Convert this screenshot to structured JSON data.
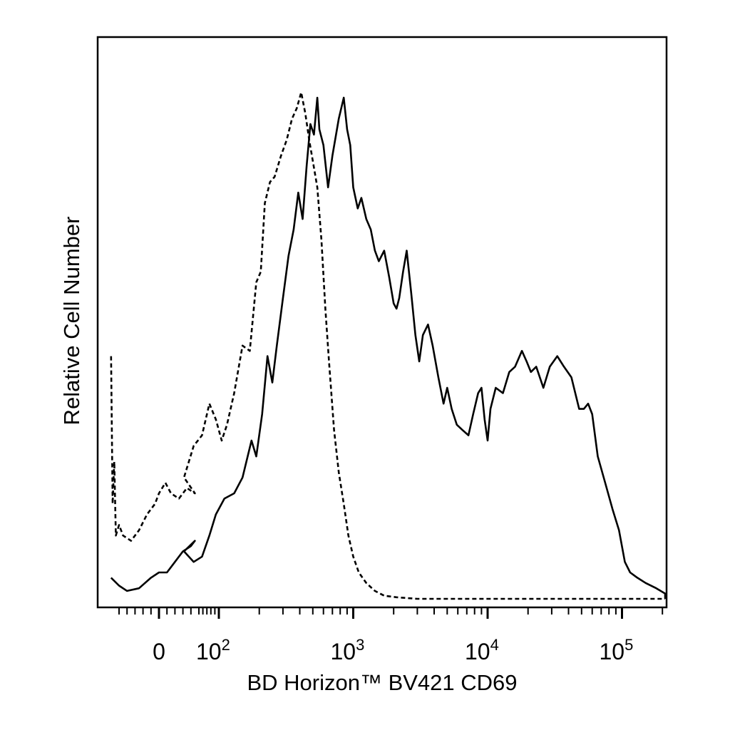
{
  "chart_data": {
    "type": "line",
    "title": "",
    "xlabel": "BD Horizon™ BV421 CD69",
    "ylabel": "Relative Cell Number",
    "x_scale": "biexponential",
    "xlim": [
      -60,
      250000
    ],
    "ylim": [
      0,
      100
    ],
    "grid": false,
    "legend": "none",
    "x_ticks": [
      {
        "label": "0",
        "base": "0",
        "exp": ""
      },
      {
        "label": "10^2",
        "base": "10",
        "exp": "2"
      },
      {
        "label": "10^3",
        "base": "10",
        "exp": "3"
      },
      {
        "label": "10^4",
        "base": "10",
        "exp": "4"
      },
      {
        "label": "10^5",
        "base": "10",
        "exp": "5"
      }
    ],
    "series": [
      {
        "style": "solid",
        "color": "#000000",
        "points": [
          [
            -60,
            4
          ],
          [
            -50,
            2.5
          ],
          [
            -40,
            1.5
          ],
          [
            -25,
            2
          ],
          [
            -10,
            4
          ],
          [
            0,
            5
          ],
          [
            10,
            5
          ],
          [
            20,
            7
          ],
          [
            30,
            9
          ],
          [
            40,
            10
          ],
          [
            45,
            11
          ],
          [
            55,
            9
          ],
          [
            65,
            7
          ],
          [
            75,
            8
          ],
          [
            85,
            12
          ],
          [
            95,
            16
          ],
          [
            110,
            19
          ],
          [
            130,
            20
          ],
          [
            150,
            23
          ],
          [
            175,
            30
          ],
          [
            190,
            27
          ],
          [
            210,
            35
          ],
          [
            230,
            46
          ],
          [
            250,
            41
          ],
          [
            270,
            48
          ],
          [
            300,
            57
          ],
          [
            330,
            65
          ],
          [
            360,
            70
          ],
          [
            390,
            77
          ],
          [
            420,
            72
          ],
          [
            450,
            82
          ],
          [
            480,
            90
          ],
          [
            510,
            88
          ],
          [
            540,
            95
          ],
          [
            560,
            89
          ],
          [
            600,
            86
          ],
          [
            650,
            78
          ],
          [
            700,
            84
          ],
          [
            780,
            91
          ],
          [
            850,
            95
          ],
          [
            900,
            89
          ],
          [
            950,
            86
          ],
          [
            1000,
            78
          ],
          [
            1080,
            74
          ],
          [
            1150,
            76
          ],
          [
            1250,
            72
          ],
          [
            1350,
            70
          ],
          [
            1450,
            66
          ],
          [
            1550,
            64
          ],
          [
            1700,
            66
          ],
          [
            1850,
            61
          ],
          [
            2000,
            56
          ],
          [
            2100,
            55
          ],
          [
            2200,
            57
          ],
          [
            2350,
            62
          ],
          [
            2500,
            66
          ],
          [
            2700,
            58
          ],
          [
            2900,
            50
          ],
          [
            3100,
            45
          ],
          [
            3300,
            50
          ],
          [
            3600,
            52
          ],
          [
            3900,
            48
          ],
          [
            4300,
            42
          ],
          [
            4700,
            37
          ],
          [
            5000,
            40
          ],
          [
            5400,
            36
          ],
          [
            5900,
            33
          ],
          [
            6500,
            32
          ],
          [
            7200,
            31
          ],
          [
            7800,
            35
          ],
          [
            8500,
            39
          ],
          [
            9000,
            40
          ],
          [
            9500,
            34
          ],
          [
            10000,
            30
          ],
          [
            10500,
            36
          ],
          [
            11500,
            40
          ],
          [
            13000,
            39
          ],
          [
            14500,
            43
          ],
          [
            16000,
            44
          ],
          [
            18000,
            47
          ],
          [
            19500,
            45
          ],
          [
            21000,
            43
          ],
          [
            23000,
            44
          ],
          [
            26000,
            40
          ],
          [
            29000,
            44
          ],
          [
            33000,
            46
          ],
          [
            37000,
            44
          ],
          [
            42000,
            42
          ],
          [
            48000,
            36
          ],
          [
            52000,
            36
          ],
          [
            56000,
            37
          ],
          [
            60000,
            35
          ],
          [
            66000,
            27
          ],
          [
            75000,
            22
          ],
          [
            85000,
            17
          ],
          [
            95000,
            13
          ],
          [
            105000,
            7
          ],
          [
            115000,
            5
          ],
          [
            130000,
            4
          ],
          [
            150000,
            3
          ],
          [
            180000,
            2
          ],
          [
            210000,
            1
          ],
          [
            240000,
            0
          ]
        ]
      },
      {
        "style": "dashed",
        "color": "#000000",
        "points": [
          [
            -60,
            46
          ],
          [
            -58,
            18
          ],
          [
            -56,
            26
          ],
          [
            -54,
            12
          ],
          [
            -50,
            14
          ],
          [
            -45,
            12
          ],
          [
            -35,
            11
          ],
          [
            -25,
            13
          ],
          [
            -15,
            16
          ],
          [
            -5,
            18
          ],
          [
            0,
            20
          ],
          [
            8,
            22
          ],
          [
            15,
            20
          ],
          [
            25,
            19
          ],
          [
            35,
            21
          ],
          [
            45,
            20
          ],
          [
            55,
            23
          ],
          [
            65,
            29
          ],
          [
            75,
            31
          ],
          [
            85,
            37
          ],
          [
            95,
            34
          ],
          [
            105,
            30
          ],
          [
            115,
            33
          ],
          [
            130,
            39
          ],
          [
            150,
            48
          ],
          [
            170,
            47
          ],
          [
            190,
            60
          ],
          [
            205,
            62
          ],
          [
            220,
            75
          ],
          [
            240,
            79
          ],
          [
            260,
            80
          ],
          [
            290,
            84
          ],
          [
            320,
            87
          ],
          [
            350,
            91
          ],
          [
            380,
            93
          ],
          [
            410,
            96
          ],
          [
            440,
            92
          ],
          [
            470,
            87
          ],
          [
            500,
            83
          ],
          [
            540,
            78
          ],
          [
            580,
            68
          ],
          [
            620,
            55
          ],
          [
            660,
            45
          ],
          [
            720,
            32
          ],
          [
            780,
            24
          ],
          [
            850,
            18
          ],
          [
            920,
            12
          ],
          [
            1000,
            8
          ],
          [
            1100,
            5
          ],
          [
            1250,
            3
          ],
          [
            1450,
            1.5
          ],
          [
            1700,
            0.6
          ],
          [
            2100,
            0.3
          ],
          [
            3000,
            0
          ],
          [
            5000,
            0
          ],
          [
            10000,
            0
          ],
          [
            50000,
            0
          ],
          [
            240000,
            0
          ]
        ]
      }
    ]
  }
}
